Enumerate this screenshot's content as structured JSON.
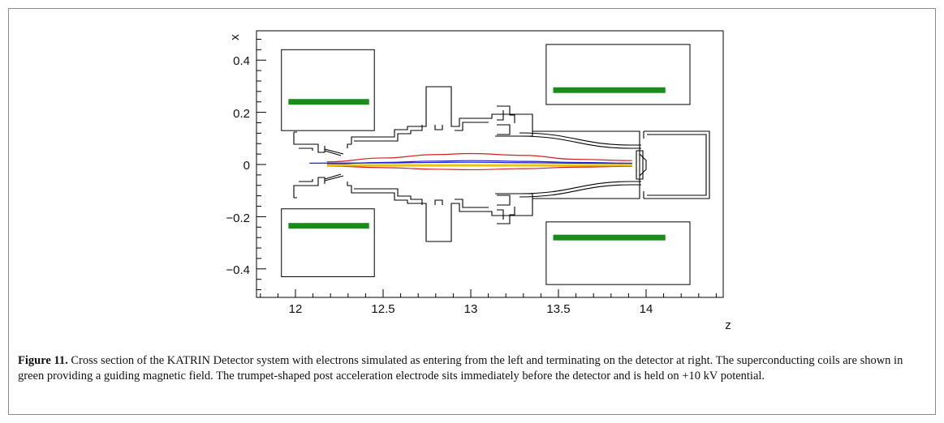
{
  "figure": {
    "label": "Figure 11.",
    "caption": "Cross section of the KATRIN Detector system with electrons simulated as entering from the left and terminating on the detector at right. The superconducting coils are shown in green providing a guiding magnetic field. The trumpet-shaped post acceleration electrode sits immediately before the detector and is held on +10 kV potential."
  },
  "chart_data": {
    "type": "line",
    "xlabel": "z",
    "ylabel": "x",
    "xlim": [
      11.75,
      14.45
    ],
    "ylim": [
      -0.5,
      0.5
    ],
    "x_ticks": [
      "12",
      "12.5",
      "13",
      "13.5",
      "14"
    ],
    "y_ticks": [
      "0.4",
      "0.2",
      "0",
      "−0.2",
      "−0.4"
    ],
    "grid": false,
    "colors": {
      "coil": "#1a8c1a",
      "trajectory_red": "#d42020",
      "trajectory_blue": "#2020d0",
      "trajectory_orange": "#f08a00",
      "trajectory_yellow": "#e6d200",
      "geometry": "#000000"
    },
    "coil_boxes": [
      {
        "z": [
          11.92,
          12.45
        ],
        "x": [
          0.13,
          0.44
        ]
      },
      {
        "z": [
          13.43,
          14.25
        ],
        "x": [
          0.23,
          0.46
        ]
      },
      {
        "z": [
          11.92,
          12.45
        ],
        "x": [
          -0.43,
          -0.17
        ]
      },
      {
        "z": [
          13.43,
          14.25
        ],
        "x": [
          -0.46,
          -0.22
        ]
      }
    ],
    "coils": [
      {
        "z": [
          11.96,
          12.42
        ],
        "x": 0.24
      },
      {
        "z": [
          13.47,
          14.11
        ],
        "x": 0.285
      },
      {
        "z": [
          11.96,
          12.42
        ],
        "x": -0.235
      },
      {
        "z": [
          13.47,
          14.11
        ],
        "x": -0.28
      }
    ],
    "series": [
      {
        "z": [
          12.18,
          12.5,
          12.8,
          13.0,
          13.3,
          13.6,
          13.92
        ],
        "x": [
          0.01,
          0.025,
          0.038,
          0.042,
          0.035,
          0.02,
          0.015
        ]
      },
      {
        "z": [
          12.18,
          12.5,
          12.8,
          13.0,
          13.3,
          13.6,
          13.92
        ],
        "x": [
          0.002,
          0.008,
          0.013,
          0.015,
          0.012,
          0.008,
          0.005
        ]
      },
      {
        "z": [
          12.08,
          12.5,
          12.8,
          13.0,
          13.3,
          13.6,
          13.92
        ],
        "x": [
          0.005,
          0.006,
          0.008,
          0.009,
          0.007,
          0.005,
          0.004
        ]
      },
      {
        "z": [
          12.18,
          12.5,
          12.8,
          13.0,
          13.3,
          13.6,
          13.92
        ],
        "x": [
          -0.006,
          -0.012,
          -0.018,
          -0.02,
          -0.016,
          -0.01,
          -0.007
        ]
      },
      {
        "z": [
          12.18,
          12.5,
          12.8,
          13.0,
          13.3,
          13.6,
          13.92
        ],
        "x": [
          -0.004,
          -0.004,
          -0.004,
          -0.004,
          -0.004,
          -0.004,
          -0.004
        ]
      },
      {
        "z": [
          12.18,
          12.5,
          12.8,
          13.0,
          13.3,
          13.6,
          13.92
        ],
        "x": [
          -0.002,
          -0.002,
          -0.002,
          -0.002,
          -0.002,
          -0.002,
          -0.002
        ]
      }
    ],
    "detector_housing": {
      "z": [
        13.97,
        14.38
      ],
      "x": [
        -0.13,
        0.13
      ]
    }
  }
}
